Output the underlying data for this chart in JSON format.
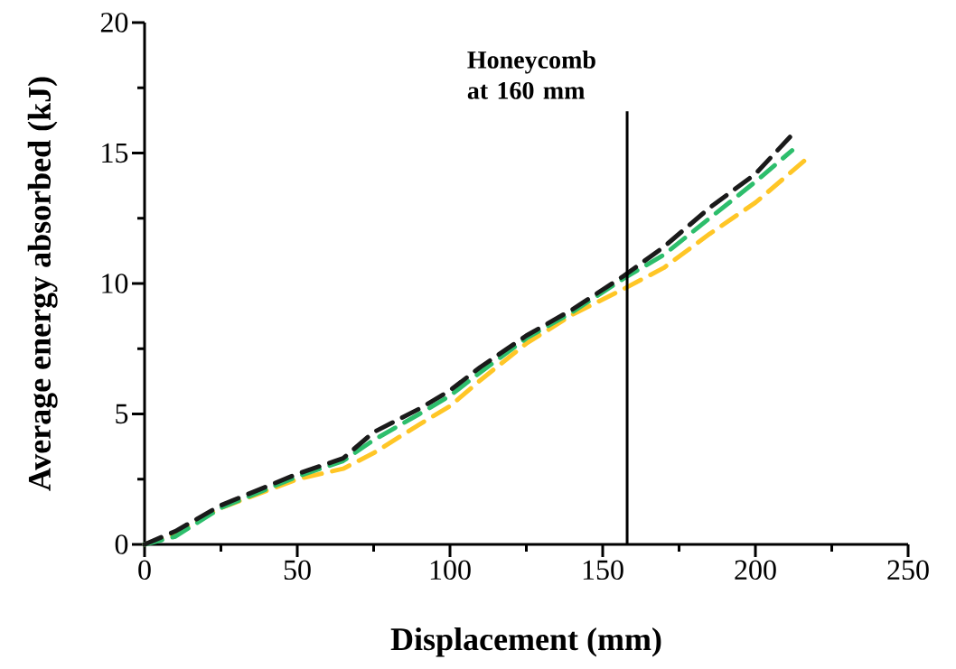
{
  "chart_data": {
    "type": "line",
    "xlabel": "Displacement (mm)",
    "ylabel": "Average energy absorbed (kJ)",
    "xlim": [
      0,
      250
    ],
    "xticks": [
      0,
      50,
      100,
      150,
      200,
      250
    ],
    "ylim": [
      0,
      20
    ],
    "yticks": [
      0,
      5,
      10,
      15,
      20
    ],
    "grid": false,
    "line_style": "dashed",
    "marker": "none",
    "ref_lines": [
      {
        "axis": "x",
        "value": 158,
        "label": "Honeycomb at 160 mm",
        "color": "#000000",
        "line_style": "solid"
      }
    ],
    "series": [
      {
        "color": "#ffc626",
        "x": [
          0,
          10,
          25,
          50,
          65,
          75,
          90,
          100,
          110,
          125,
          140,
          157,
          170,
          185,
          200,
          217
        ],
        "values": [
          0,
          0.4,
          1.4,
          2.5,
          2.9,
          3.5,
          4.6,
          5.3,
          6.3,
          7.7,
          8.8,
          9.8,
          10.6,
          11.9,
          13.1,
          14.8
        ]
      },
      {
        "color": "#2dbe6c",
        "x": [
          0,
          10,
          25,
          50,
          65,
          75,
          90,
          100,
          110,
          125,
          140,
          157,
          170,
          185,
          200,
          212
        ],
        "values": [
          0,
          0.3,
          1.4,
          2.6,
          3.2,
          4.0,
          5.0,
          5.7,
          6.6,
          7.9,
          8.9,
          10.2,
          11.1,
          12.5,
          13.9,
          15.1
        ]
      },
      {
        "color": "#1a1a1a",
        "x": [
          0,
          10,
          25,
          50,
          65,
          75,
          90,
          100,
          110,
          125,
          140,
          157,
          170,
          185,
          200,
          212
        ],
        "values": [
          0,
          0.5,
          1.5,
          2.7,
          3.3,
          4.3,
          5.2,
          5.9,
          6.8,
          8.0,
          9.0,
          10.3,
          11.4,
          12.9,
          14.2,
          15.7
        ]
      }
    ]
  }
}
